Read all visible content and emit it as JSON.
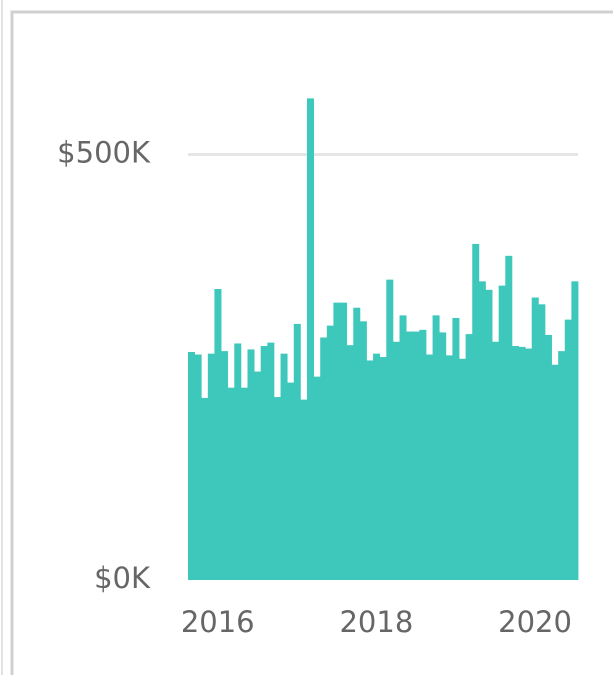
{
  "chart_data": {
    "type": "bar",
    "color": "#3dc8bb",
    "grid": true,
    "categories": [
      null,
      null,
      null,
      null,
      "2016",
      null,
      null,
      null,
      null,
      null,
      null,
      null,
      null,
      null,
      null,
      null,
      null,
      null,
      null,
      null,
      null,
      null,
      null,
      null,
      null,
      null,
      null,
      null,
      "2018",
      null,
      null,
      null,
      null,
      null,
      null,
      null,
      null,
      null,
      null,
      null,
      null,
      null,
      null,
      null,
      null,
      null,
      null,
      null,
      null,
      null,
      null,
      null,
      "2020",
      null,
      null,
      null,
      null,
      null,
      null
    ],
    "values": [
      268000,
      265000,
      214000,
      266000,
      342000,
      269000,
      226000,
      278000,
      226000,
      271000,
      245000,
      275000,
      279000,
      215000,
      266000,
      232000,
      301000,
      212000,
      566000,
      239000,
      285000,
      299000,
      326000,
      326000,
      276000,
      320000,
      304000,
      258000,
      266000,
      262000,
      353000,
      280000,
      311000,
      292000,
      292000,
      294000,
      265000,
      311000,
      291000,
      264000,
      308000,
      260000,
      289000,
      395000,
      351000,
      341000,
      280000,
      346000,
      381000,
      275000,
      274000,
      272000,
      332000,
      324000,
      288000,
      253000,
      269000,
      306000,
      351000
    ],
    "ylim": [
      0,
      570000
    ],
    "yticks": [
      {
        "value": 0,
        "label": "$0K"
      },
      {
        "value": 500000,
        "label": "$500K"
      }
    ]
  }
}
